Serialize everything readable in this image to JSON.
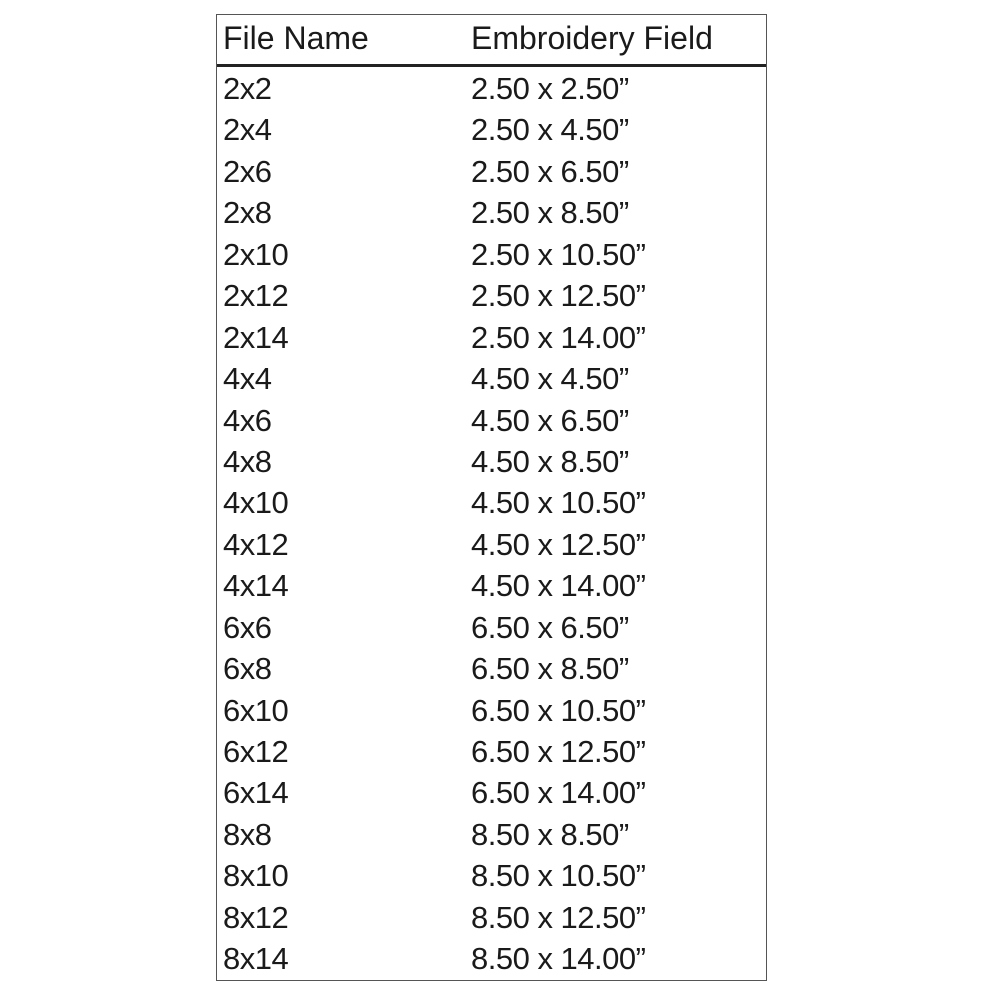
{
  "headers": [
    "File Name",
    "Embroidery Field"
  ],
  "rows": [
    [
      "2x2",
      "2.50 x 2.50”"
    ],
    [
      "2x4",
      "2.50 x 4.50”"
    ],
    [
      "2x6",
      "2.50 x 6.50”"
    ],
    [
      "2x8",
      "2.50 x 8.50”"
    ],
    [
      "2x10",
      "2.50 x 10.50”"
    ],
    [
      "2x12",
      "2.50 x 12.50”"
    ],
    [
      "2x14",
      "2.50 x 14.00”"
    ],
    [
      "4x4",
      "4.50 x 4.50”"
    ],
    [
      "4x6",
      "4.50 x 6.50”"
    ],
    [
      "4x8",
      "4.50 x 8.50”"
    ],
    [
      "4x10",
      "4.50 x 10.50”"
    ],
    [
      "4x12",
      "4.50 x 12.50”"
    ],
    [
      "4x14",
      "4.50 x 14.00”"
    ],
    [
      "6x6",
      "6.50 x 6.50”"
    ],
    [
      "6x8",
      "6.50 x 8.50”"
    ],
    [
      "6x10",
      "6.50 x 10.50”"
    ],
    [
      "6x12",
      "6.50 x 12.50”"
    ],
    [
      "6x14",
      "6.50 x 14.00”"
    ],
    [
      "8x8",
      "8.50 x 8.50”"
    ],
    [
      "8x10",
      "8.50 x 10.50”"
    ],
    [
      "8x12",
      "8.50 x 12.50”"
    ],
    [
      "8x14",
      "8.50 x 14.00”"
    ]
  ]
}
